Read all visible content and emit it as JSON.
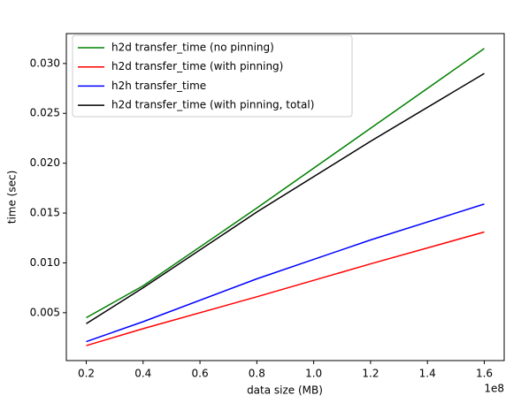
{
  "chart_data": {
    "type": "line",
    "xlabel": "data size (MB)",
    "ylabel": "time (sec)",
    "x_offset_text": "1e8",
    "x": [
      20000000,
      40000000,
      80000000,
      120000000,
      160000000
    ],
    "series": [
      {
        "name": "h2d transfer_time (no pinning)",
        "color": "#008000",
        "values": [
          0.0045,
          0.0077,
          0.0155,
          0.0235,
          0.0315
        ]
      },
      {
        "name": "h2d transfer_time (with pinning)",
        "color": "#ff0000",
        "values": [
          0.0017,
          0.0034,
          0.0066,
          0.0099,
          0.0131
        ]
      },
      {
        "name": "h2h transfer_time",
        "color": "#0000ff",
        "values": [
          0.0021,
          0.0041,
          0.0084,
          0.0123,
          0.0159
        ]
      },
      {
        "name": "h2d transfer_time (with pinning, total)",
        "color": "#000000",
        "values": [
          0.0039,
          0.0075,
          0.0151,
          0.0222,
          0.029
        ]
      }
    ],
    "xlim": [
      13000000,
      167000000
    ],
    "xticks": [
      {
        "value": 20000000,
        "label": "0.2"
      },
      {
        "value": 40000000,
        "label": "0.4"
      },
      {
        "value": 60000000,
        "label": "0.6"
      },
      {
        "value": 80000000,
        "label": "0.8"
      },
      {
        "value": 100000000,
        "label": "1.0"
      },
      {
        "value": 120000000,
        "label": "1.2"
      },
      {
        "value": 140000000,
        "label": "1.4"
      },
      {
        "value": 160000000,
        "label": "1.6"
      }
    ],
    "ylim": [
      0.0002,
      0.033
    ],
    "yticks": [
      0.005,
      {
        "value": 0.01,
        "label": "0.010"
      },
      0.015,
      {
        "value": 0.02,
        "label": "0.020"
      },
      0.025,
      {
        "value": 0.03,
        "label": "0.030"
      }
    ],
    "grid": false,
    "legend": "upper-left"
  }
}
